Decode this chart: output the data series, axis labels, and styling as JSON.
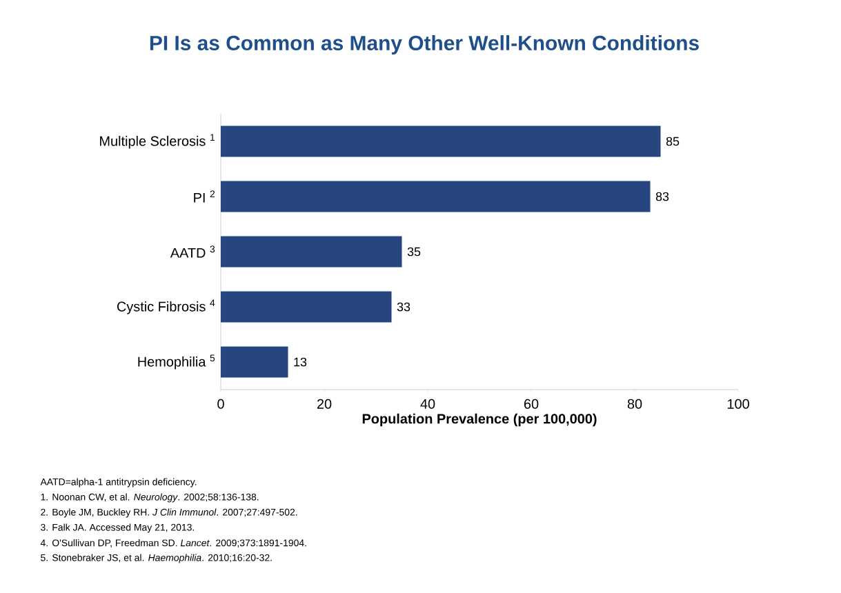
{
  "chart_data": {
    "type": "bar",
    "orientation": "horizontal",
    "title": "PI Is as Common as Many Other Well-Known Conditions",
    "categories": [
      "Multiple Sclerosis $^{1}$",
      "PI $^{2}$",
      "AATD $^{3}$",
      "Cystic Fibrosis $^{4}$",
      "Hemophilia $^{5}$"
    ],
    "values": [
      85,
      83,
      35,
      33,
      13
    ],
    "color": "#27467f",
    "xlim": [
      0,
      100
    ],
    "xticks": [
      0,
      20,
      40,
      60,
      80,
      100
    ],
    "xlabel": "Population Prevalence (per 100,000)",
    "data_labels": true,
    "grid": false,
    "annotations": [
      "AATD=alpha-1 antitrypsin deficiency.",
      "1. Noonan CW, et al. *Neurology*. 2002;58:136-138.",
      "2. Boyle JM, Buckley RH. *J Clin Immunol*. 2007;27:497-502.",
      "3. Falk JA. Accessed May 21, 2013.",
      "4. O'Sullivan DP, Freedman SD. *Lancet*. 2009;373:1891-1904.",
      "5. Stonebraker JS, et al. *Haemophilia*. 2010;16:20-32."
    ]
  }
}
